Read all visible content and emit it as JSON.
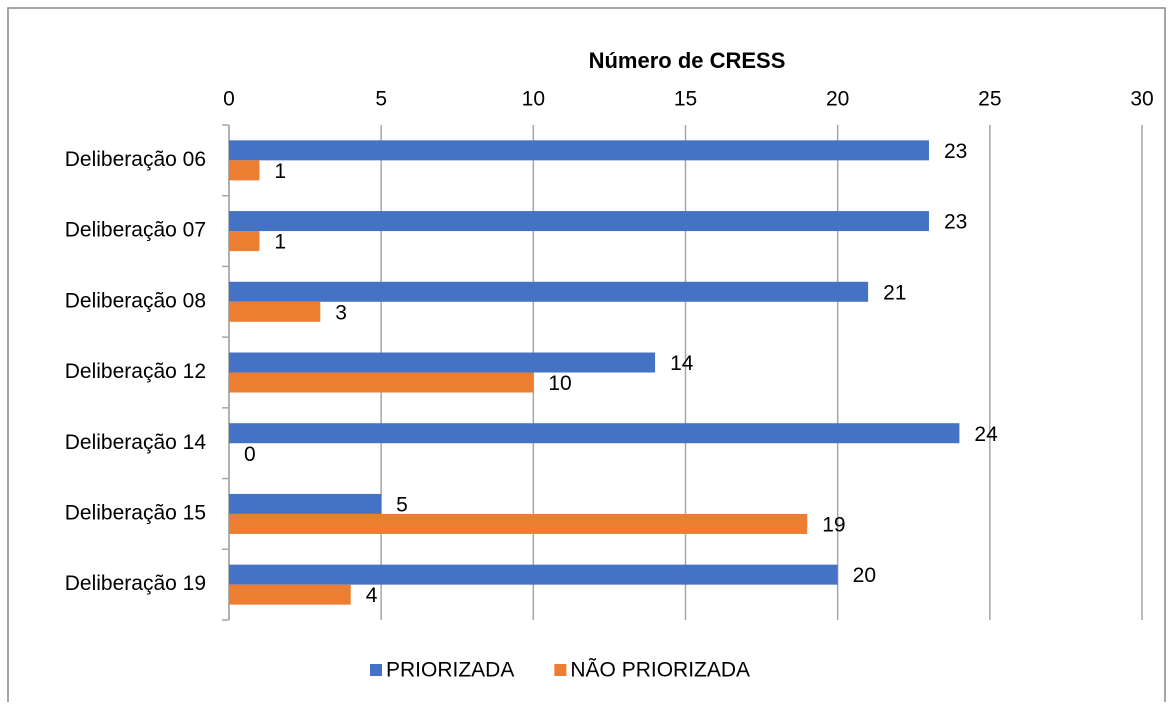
{
  "chart_data": {
    "type": "bar",
    "orientation": "horizontal",
    "title": "Número de CRESS",
    "categories": [
      "Deliberação 06",
      "Deliberação 07",
      "Deliberação 08",
      "Deliberação 12",
      "Deliberação 14",
      "Deliberação 15",
      "Deliberação 19"
    ],
    "series": [
      {
        "name": "PRIORIZADA",
        "color": "#4472c4",
        "values": [
          23,
          23,
          21,
          14,
          24,
          5,
          20
        ]
      },
      {
        "name": "NÃO PRIORIZADA",
        "color": "#ed7d31",
        "values": [
          1,
          1,
          3,
          10,
          0,
          19,
          4
        ]
      }
    ],
    "xlim": [
      0,
      30
    ],
    "xticks": [
      0,
      5,
      10,
      15,
      20,
      25,
      30
    ],
    "grid": true,
    "legend": "bottom"
  }
}
